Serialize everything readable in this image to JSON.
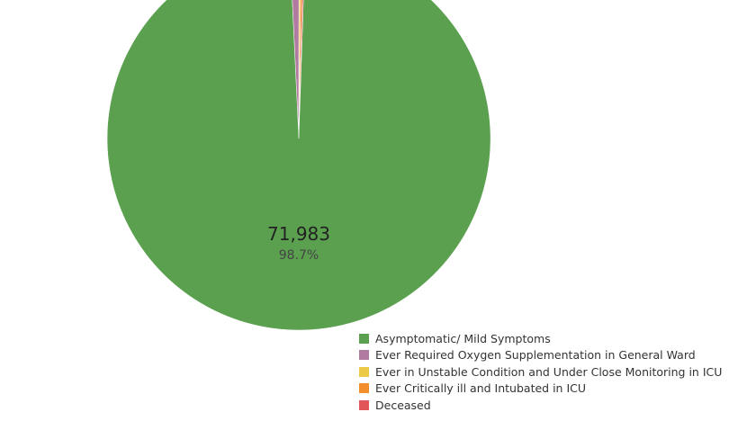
{
  "chart_data": {
    "type": "pie",
    "categories": [
      "Asymptomatic/ Mild Symptoms",
      "Ever Required Oxygen Supplementation in General Ward",
      "Ever in Unstable Condition and Under Close Monitoring in ICU",
      "Ever Critically ill and Intubated in ICU",
      "Deceased"
    ],
    "values": [
      71983,
      560,
      110,
      160,
      110
    ],
    "colors": [
      "#5aa04f",
      "#b07aa1",
      "#edc948",
      "#f28e2b",
      "#e15759"
    ],
    "labels": [
      {
        "category": "Asymptomatic/ Mild Symptoms",
        "value_text": "71,983",
        "percent_text": "98.7%"
      }
    ],
    "legend_position": "bottom-right"
  }
}
